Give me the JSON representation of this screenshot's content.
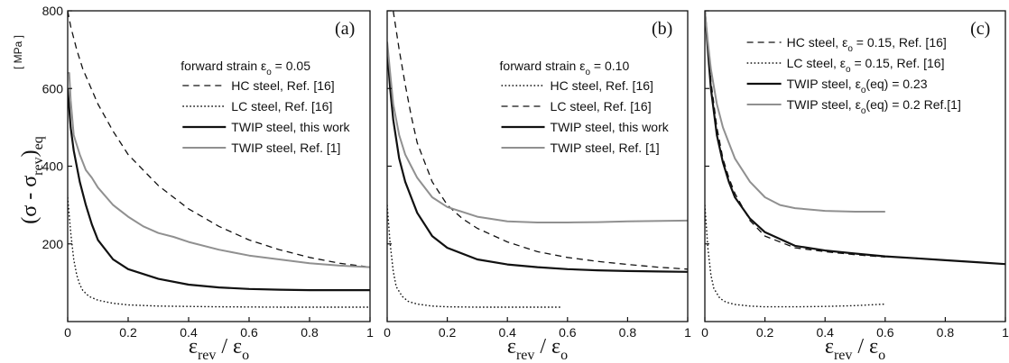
{
  "figure": {
    "ylabel": {
      "open": "(σ - σ",
      "sub1": "rev",
      "close": ")",
      "sub2": "eq"
    },
    "yunit": "[ MPa ]",
    "xlabel": {
      "eps1": "ε",
      "sub1": "rev",
      "slash": " / ",
      "eps2": "ε",
      "sub2": "o"
    }
  },
  "chart_data": [
    {
      "type": "line",
      "panel_label": "(a)",
      "xlim": [
        0,
        1
      ],
      "ylim": [
        0,
        800
      ],
      "x_ticks": [
        0,
        0.2,
        0.4,
        0.6,
        0.8,
        1
      ],
      "x_tick_labels": [
        "0",
        "0.2",
        "0.4",
        "0.6",
        "0.8",
        "1"
      ],
      "y_ticks": [
        200,
        400,
        600,
        800
      ],
      "y_tick_labels": [
        "200",
        "400",
        "600",
        "800"
      ],
      "legend_header": {
        "pre": "forward strain ε",
        "sub": "o",
        "post": " = 0.05"
      },
      "series": [
        {
          "name": "HC steel, Ref. [16]",
          "style": "dashed",
          "color": "#111111",
          "x": [
            0.0,
            0.01,
            0.03,
            0.05,
            0.1,
            0.15,
            0.2,
            0.3,
            0.4,
            0.5,
            0.6,
            0.7,
            0.8,
            0.9,
            1.0
          ],
          "y": [
            800,
            760,
            700,
            650,
            560,
            490,
            430,
            350,
            290,
            245,
            210,
            185,
            165,
            150,
            140
          ]
        },
        {
          "name": "LC steel, Ref. [16]",
          "style": "dotted",
          "color": "#111111",
          "x": [
            0.0,
            0.01,
            0.02,
            0.03,
            0.04,
            0.05,
            0.07,
            0.1,
            0.15,
            0.2,
            0.3,
            0.5,
            0.7,
            1.0
          ],
          "y": [
            320,
            230,
            160,
            120,
            95,
            80,
            65,
            55,
            47,
            43,
            40,
            38,
            37,
            37
          ]
        },
        {
          "name": "TWIP steel, this work",
          "style": "solid",
          "color": "#111111",
          "x": [
            0.0,
            0.01,
            0.02,
            0.04,
            0.06,
            0.08,
            0.1,
            0.15,
            0.2,
            0.3,
            0.4,
            0.5,
            0.6,
            0.7,
            0.8,
            1.0
          ],
          "y": [
            600,
            500,
            440,
            360,
            300,
            250,
            210,
            160,
            135,
            110,
            95,
            88,
            84,
            82,
            81,
            81
          ]
        },
        {
          "name": "TWIP steel, Ref. [1]",
          "style": "solid-gray",
          "color": "#909090",
          "x": [
            0.0,
            0.005,
            0.01,
            0.02,
            0.04,
            0.06,
            0.08,
            0.1,
            0.15,
            0.2,
            0.25,
            0.3,
            0.35,
            0.4,
            0.5,
            0.6,
            0.7,
            0.8,
            0.9,
            1.0
          ],
          "y": [
            640,
            640,
            570,
            480,
            430,
            390,
            370,
            345,
            300,
            270,
            245,
            228,
            218,
            205,
            185,
            170,
            160,
            150,
            144,
            140
          ]
        }
      ]
    },
    {
      "type": "line",
      "panel_label": "(b)",
      "xlim": [
        0,
        1
      ],
      "ylim": [
        0,
        800
      ],
      "x_ticks": [
        0,
        0.2,
        0.4,
        0.6,
        0.8,
        1
      ],
      "x_tick_labels": [
        "0",
        "0.2",
        "0.4",
        "0.6",
        "0.8",
        "1"
      ],
      "y_ticks": [
        200,
        400,
        600,
        800
      ],
      "y_tick_labels": [
        "",
        "",
        "",
        ""
      ],
      "legend_header": {
        "pre": "forward strain ε",
        "sub": "o",
        "post": " = 0.10"
      },
      "series": [
        {
          "name": "HC steel, Ref. [16]",
          "style": "dotted",
          "color": "#111111",
          "x": [
            0.0,
            0.01,
            0.02,
            0.03,
            0.05,
            0.07,
            0.1,
            0.15,
            0.2,
            0.3,
            0.4,
            0.5,
            0.58
          ],
          "y": [
            300,
            200,
            130,
            90,
            65,
            52,
            45,
            40,
            38,
            37,
            37,
            37,
            37
          ]
        },
        {
          "name": "LC  steel, Ref. [16]",
          "style": "dashed",
          "color": "#111111",
          "x": [
            0.02,
            0.04,
            0.06,
            0.08,
            0.1,
            0.15,
            0.2,
            0.25,
            0.3,
            0.4,
            0.5,
            0.6,
            0.7,
            0.8,
            0.9,
            1.0
          ],
          "y": [
            800,
            700,
            610,
            530,
            460,
            360,
            300,
            265,
            240,
            205,
            180,
            165,
            155,
            147,
            140,
            135
          ]
        },
        {
          "name": "TWIP steel, this work",
          "style": "solid",
          "color": "#111111",
          "x": [
            0.0,
            0.01,
            0.02,
            0.04,
            0.06,
            0.08,
            0.1,
            0.15,
            0.2,
            0.3,
            0.4,
            0.5,
            0.6,
            0.7,
            0.8,
            0.9,
            1.0
          ],
          "y": [
            700,
            600,
            520,
            420,
            360,
            320,
            280,
            220,
            190,
            160,
            147,
            140,
            135,
            132,
            130,
            129,
            128
          ]
        },
        {
          "name": "TWIP steel, Ref. [1]",
          "style": "solid-gray",
          "color": "#909090",
          "x": [
            0.0,
            0.01,
            0.02,
            0.04,
            0.06,
            0.08,
            0.1,
            0.15,
            0.2,
            0.3,
            0.4,
            0.5,
            0.6,
            0.7,
            0.8,
            1.0
          ],
          "y": [
            720,
            640,
            560,
            480,
            430,
            400,
            370,
            320,
            295,
            270,
            258,
            255,
            255,
            256,
            258,
            260
          ]
        }
      ]
    },
    {
      "type": "line",
      "panel_label": "(c)",
      "xlim": [
        0,
        1
      ],
      "ylim": [
        0,
        800
      ],
      "x_ticks": [
        0,
        0.2,
        0.4,
        0.6,
        0.8,
        1
      ],
      "x_tick_labels": [
        "0",
        "0.2",
        "0.4",
        "0.6",
        "0.8",
        "1"
      ],
      "y_ticks": [
        200,
        400,
        600,
        800
      ],
      "y_tick_labels": [
        "",
        "",
        "",
        ""
      ],
      "series": [
        {
          "name": {
            "pre": "HC steel, ε",
            "sub": "o",
            "post": " = 0.15, Ref. [16]"
          },
          "style": "dashed",
          "color": "#111111",
          "x": [
            0.0,
            0.01,
            0.02,
            0.04,
            0.06,
            0.08,
            0.1,
            0.15,
            0.2,
            0.3,
            0.4,
            0.5,
            0.6
          ],
          "y": [
            800,
            720,
            620,
            500,
            420,
            370,
            330,
            260,
            220,
            190,
            180,
            172,
            166
          ]
        },
        {
          "name": {
            "pre": "LC steel, ε",
            "sub": "o",
            "post": " = 0.15, Ref. [16]"
          },
          "style": "dotted",
          "color": "#111111",
          "x": [
            0.0,
            0.01,
            0.02,
            0.03,
            0.05,
            0.07,
            0.1,
            0.15,
            0.2,
            0.3,
            0.4,
            0.5,
            0.6
          ],
          "y": [
            300,
            190,
            120,
            85,
            60,
            50,
            44,
            40,
            38,
            38,
            39,
            41,
            45
          ]
        },
        {
          "name": {
            "pre": "TWIP steel, ε",
            "sub": "o",
            "post": "(eq) = 0.23"
          },
          "style": "solid",
          "color": "#111111",
          "x": [
            0.0,
            0.01,
            0.02,
            0.04,
            0.06,
            0.08,
            0.1,
            0.15,
            0.2,
            0.3,
            0.4,
            0.5,
            0.6,
            0.7,
            0.8,
            0.9,
            1.0
          ],
          "y": [
            800,
            700,
            600,
            480,
            410,
            360,
            320,
            265,
            230,
            195,
            183,
            175,
            168,
            163,
            158,
            153,
            148
          ]
        },
        {
          "name": {
            "pre": "TWIP steel, ε",
            "sub": "o",
            "post": "(eq) = 0.2 Ref.[1]"
          },
          "style": "solid-gray",
          "color": "#909090",
          "x": [
            0.0,
            0.01,
            0.02,
            0.04,
            0.06,
            0.08,
            0.1,
            0.15,
            0.2,
            0.25,
            0.3,
            0.4,
            0.5,
            0.6
          ],
          "y": [
            800,
            720,
            650,
            560,
            500,
            460,
            420,
            360,
            320,
            300,
            292,
            285,
            283,
            283
          ]
        }
      ]
    }
  ]
}
